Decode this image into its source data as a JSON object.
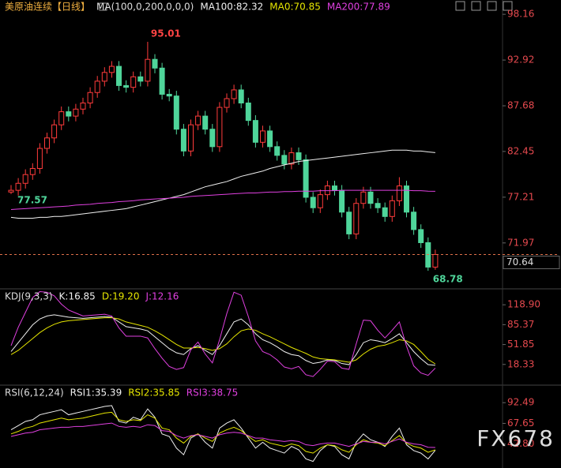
{
  "chart_data": [
    {
      "type": "candlestick",
      "title": "美原油连续【日线】",
      "indicator": "MA(100,0,200,0,0,0)",
      "legend_note": {
        "text": "MA0:70.85",
        "color": "#e6e600"
      },
      "up_color": "#ff3b3b",
      "down_color": "#4fd59a",
      "opens": [
        77.8,
        78.0,
        78.8,
        79.8,
        80.5,
        82.8,
        84.0,
        85.5,
        87.0,
        86.5,
        87.3,
        88.0,
        89.2,
        90.5,
        91.5,
        92.2,
        90.0,
        89.8,
        91.0,
        90.5,
        93.0,
        92.0,
        89.0,
        88.8,
        85.0,
        82.5,
        85.5,
        86.5,
        85.0,
        83.0,
        87.5,
        88.5,
        89.5,
        88.0,
        86.0,
        83.5,
        84.8,
        83.0,
        82.0,
        81.0,
        82.3,
        81.5,
        77.2,
        76.0,
        77.5,
        78.5,
        78.0,
        75.5,
        73.0,
        76.5,
        77.8,
        76.5,
        76.0,
        75.0,
        76.8,
        78.5,
        75.5,
        73.5,
        72.0,
        69.2
      ],
      "highs": [
        78.6,
        79.4,
        80.4,
        81.1,
        83.4,
        84.6,
        86.1,
        87.6,
        87.6,
        87.9,
        88.6,
        89.8,
        91.1,
        92.1,
        92.8,
        92.8,
        90.6,
        91.6,
        91.6,
        95.01,
        93.6,
        92.6,
        89.6,
        89.4,
        85.6,
        86.1,
        87.1,
        87.1,
        85.6,
        88.1,
        89.1,
        90.1,
        90.1,
        88.6,
        86.6,
        85.4,
        85.4,
        83.6,
        82.6,
        82.9,
        82.9,
        82.1,
        77.8,
        78.1,
        79.1,
        79.1,
        78.6,
        76.1,
        77.1,
        78.4,
        78.4,
        77.1,
        76.6,
        77.4,
        79.5,
        79.1,
        76.1,
        74.1,
        72.6,
        71.2
      ],
      "lows": [
        77.57,
        77.4,
        78.2,
        79.2,
        79.9,
        82.2,
        83.4,
        84.9,
        85.9,
        85.9,
        86.7,
        87.4,
        88.6,
        89.9,
        90.9,
        89.4,
        89.2,
        89.2,
        89.9,
        89.9,
        91.4,
        88.4,
        88.2,
        84.4,
        81.9,
        81.9,
        84.9,
        84.4,
        82.4,
        82.4,
        86.9,
        87.9,
        87.4,
        85.4,
        82.9,
        82.9,
        82.4,
        81.4,
        80.4,
        80.4,
        80.9,
        76.6,
        75.4,
        75.4,
        76.9,
        77.4,
        74.9,
        72.4,
        72.4,
        75.9,
        75.9,
        75.4,
        74.4,
        74.4,
        76.2,
        74.9,
        72.9,
        71.4,
        68.78,
        68.9
      ],
      "closes": [
        78.0,
        78.8,
        79.8,
        80.5,
        82.8,
        84.0,
        85.5,
        87.0,
        86.5,
        87.3,
        88.0,
        89.2,
        90.5,
        91.5,
        92.2,
        90.0,
        89.8,
        91.0,
        90.5,
        93.0,
        92.0,
        89.0,
        88.8,
        85.0,
        82.5,
        85.5,
        86.5,
        85.0,
        83.0,
        87.5,
        88.5,
        89.5,
        88.0,
        86.0,
        83.5,
        84.8,
        83.0,
        82.0,
        81.0,
        82.3,
        81.5,
        77.2,
        76.0,
        77.5,
        78.5,
        78.0,
        75.5,
        73.0,
        76.5,
        77.8,
        76.5,
        76.0,
        75.0,
        76.8,
        78.5,
        75.5,
        73.5,
        72.0,
        69.2,
        70.64
      ],
      "series": [
        {
          "name": "MA100:82.32",
          "color": "#f0f0f0",
          "values": [
            74.9,
            74.8,
            74.8,
            74.8,
            74.9,
            74.9,
            75.0,
            75.0,
            75.1,
            75.2,
            75.3,
            75.4,
            75.5,
            75.6,
            75.7,
            75.8,
            75.9,
            76.1,
            76.3,
            76.5,
            76.7,
            76.9,
            77.1,
            77.3,
            77.5,
            77.8,
            78.1,
            78.4,
            78.6,
            78.8,
            79.0,
            79.3,
            79.6,
            79.8,
            80.0,
            80.2,
            80.5,
            80.7,
            80.9,
            81.1,
            81.3,
            81.4,
            81.5,
            81.6,
            81.7,
            81.8,
            81.9,
            82.0,
            82.1,
            82.2,
            82.3,
            82.4,
            82.5,
            82.6,
            82.6,
            82.6,
            82.5,
            82.5,
            82.4,
            82.32
          ]
        },
        {
          "name": "MA200:77.89",
          "color": "#e040e0",
          "values": [
            75.8,
            75.85,
            75.9,
            75.95,
            76.0,
            76.05,
            76.1,
            76.15,
            76.2,
            76.3,
            76.35,
            76.4,
            76.5,
            76.55,
            76.6,
            76.7,
            76.75,
            76.8,
            76.9,
            76.95,
            77.0,
            77.05,
            77.1,
            77.15,
            77.2,
            77.3,
            77.35,
            77.4,
            77.45,
            77.5,
            77.55,
            77.6,
            77.65,
            77.7,
            77.7,
            77.75,
            77.8,
            77.8,
            77.85,
            77.85,
            77.9,
            77.9,
            77.9,
            77.95,
            77.95,
            77.95,
            78.0,
            78.0,
            78.0,
            78.0,
            78.0,
            78.0,
            78.0,
            78.0,
            78.0,
            78.0,
            77.95,
            77.95,
            77.9,
            77.89
          ]
        }
      ],
      "ylim": [
        66.8,
        99.8
      ],
      "yticks": [
        98.16,
        92.92,
        87.68,
        82.45,
        77.21,
        71.97
      ]
    },
    {
      "type": "line",
      "title": "KDJ(9,3,3)",
      "series": [
        {
          "name": "K:16.85",
          "color": "#f0f0f0",
          "values": [
            40,
            55,
            70,
            85,
            95,
            100,
            102,
            100,
            98,
            97,
            96,
            97,
            98,
            99,
            98,
            90,
            82,
            80,
            78,
            75,
            65,
            55,
            45,
            38,
            35,
            45,
            50,
            42,
            35,
            50,
            70,
            90,
            95,
            85,
            70,
            60,
            55,
            48,
            40,
            35,
            33,
            25,
            20,
            22,
            26,
            25,
            20,
            18,
            35,
            55,
            60,
            58,
            55,
            62,
            70,
            55,
            40,
            28,
            18,
            16.85
          ]
        },
        {
          "name": "D:19.20",
          "color": "#e6e600",
          "values": [
            35,
            42,
            52,
            62,
            72,
            80,
            86,
            90,
            92,
            93,
            94,
            95,
            96,
            97,
            97,
            95,
            90,
            87,
            84,
            81,
            75,
            68,
            60,
            52,
            46,
            46,
            47,
            45,
            42,
            45,
            53,
            65,
            75,
            78,
            76,
            70,
            65,
            59,
            53,
            47,
            42,
            37,
            31,
            28,
            27,
            26,
            24,
            22,
            26,
            36,
            44,
            49,
            51,
            55,
            60,
            58,
            52,
            40,
            27,
            19.2
          ]
        },
        {
          "name": "J:12.16",
          "color": "#e040e0",
          "values": [
            50,
            81,
            106,
            131,
            141,
            140,
            134,
            120,
            110,
            105,
            100,
            101,
            102,
            103,
            100,
            80,
            66,
            66,
            66,
            63,
            45,
            29,
            15,
            10,
            13,
            43,
            56,
            36,
            21,
            60,
            104,
            140,
            135,
            99,
            58,
            40,
            35,
            26,
            14,
            11,
            15,
            1,
            -2,
            10,
            24,
            23,
            12,
            10,
            53,
            93,
            92,
            76,
            63,
            76,
            90,
            49,
            16,
            4,
            0,
            12.16
          ]
        }
      ],
      "ylim": [
        -15.2,
        144.4
      ],
      "yticks": [
        {
          "value": 118.9,
          "label": "118.90"
        },
        85.37,
        51.85,
        18.33
      ]
    },
    {
      "type": "line",
      "title": "RSI(6,12,24)",
      "series": [
        {
          "name": "RSI1:35.39",
          "color": "#f0f0f0",
          "values": [
            60,
            65,
            70,
            72,
            78,
            80,
            82,
            84,
            78,
            80,
            82,
            84,
            86,
            88,
            89,
            70,
            68,
            75,
            72,
            85,
            75,
            55,
            52,
            38,
            30,
            50,
            55,
            45,
            38,
            62,
            68,
            72,
            62,
            50,
            38,
            45,
            38,
            35,
            32,
            40,
            36,
            25,
            22,
            35,
            42,
            40,
            30,
            25,
            45,
            55,
            48,
            45,
            40,
            52,
            62,
            42,
            35,
            32,
            25,
            35.39
          ]
        },
        {
          "name": "RSI2:35.85",
          "color": "#e6e600",
          "values": [
            55,
            58,
            62,
            64,
            68,
            70,
            72,
            74,
            72,
            73,
            74,
            76,
            78,
            80,
            81,
            72,
            70,
            72,
            71,
            78,
            74,
            62,
            60,
            50,
            44,
            52,
            55,
            50,
            46,
            56,
            60,
            63,
            59,
            52,
            46,
            48,
            44,
            42,
            40,
            43,
            41,
            34,
            32,
            38,
            42,
            41,
            36,
            33,
            42,
            48,
            45,
            44,
            41,
            47,
            53,
            44,
            40,
            38,
            33,
            35.85
          ]
        },
        {
          "name": "RSI3:38.75",
          "color": "#e040e0",
          "values": [
            52,
            54,
            56,
            57,
            60,
            61,
            62,
            63,
            63,
            64,
            64,
            65,
            66,
            67,
            68,
            64,
            63,
            64,
            63,
            66,
            65,
            59,
            58,
            53,
            50,
            53,
            54,
            52,
            50,
            54,
            56,
            57,
            56,
            53,
            50,
            50,
            48,
            47,
            46,
            47,
            46,
            42,
            41,
            43,
            44,
            44,
            42,
            40,
            43,
            46,
            45,
            45,
            43,
            46,
            49,
            45,
            43,
            42,
            39,
            38.75
          ]
        }
      ],
      "ylim": [
        14.1,
        112.6
      ],
      "yticks": [
        92.49,
        67.65,
        {
          "value": 42.8,
          "label": "42.80"
        }
      ]
    }
  ],
  "watermark": "FX678"
}
